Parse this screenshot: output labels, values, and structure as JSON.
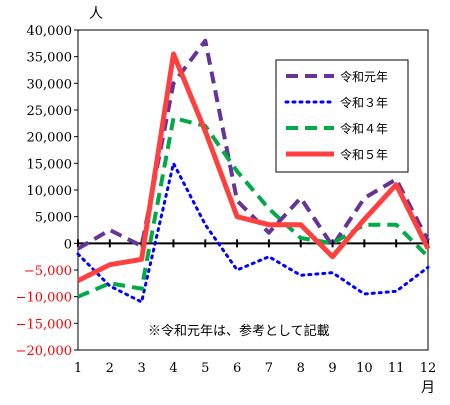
{
  "chart_data": {
    "type": "line",
    "x": [
      1,
      2,
      3,
      4,
      5,
      6,
      7,
      8,
      9,
      10,
      11,
      12
    ],
    "x_tick_labels": [
      "1",
      "2",
      "3",
      "4",
      "5",
      "6",
      "7",
      "8",
      "9",
      "10",
      "11",
      "12"
    ],
    "x_unit": "月",
    "y_unit": "人",
    "ylim": [
      -20000,
      40000
    ],
    "yticks": [
      40000,
      35000,
      30000,
      25000,
      20000,
      15000,
      10000,
      5000,
      0,
      -5000,
      -10000,
      -15000,
      -20000
    ],
    "ytick_labels": [
      "40,000",
      "35,000",
      "30,000",
      "25,000",
      "20,000",
      "15,000",
      "10,000",
      "5,000",
      "0",
      "−5,000",
      "−10,000",
      "−15,000",
      "−20,000"
    ],
    "negative_tick_color": "#ff0000",
    "note": "※令和元年は、参考として記載",
    "legend_position": "top-right",
    "series": [
      {
        "name": "令和元年",
        "color": "#663399",
        "style": "dashed",
        "values": [
          -1000,
          2500,
          -500,
          30000,
          38000,
          8000,
          2000,
          8500,
          -500,
          8500,
          12000,
          500
        ]
      },
      {
        "name": "令和３年",
        "color": "#0000ff",
        "style": "dotted",
        "values": [
          -2000,
          -8000,
          -11000,
          15000,
          3500,
          -5000,
          -2500,
          -6000,
          -5500,
          -9500,
          -9000,
          -4500
        ]
      },
      {
        "name": "令和４年",
        "color": "#00aa44",
        "style": "dashed",
        "values": [
          -10000,
          -7500,
          -8500,
          23500,
          22000,
          13500,
          6500,
          1000,
          0,
          3500,
          3500,
          -2500
        ]
      },
      {
        "name": "令和５年",
        "color": "#ff4040",
        "style": "solid",
        "values": [
          -7000,
          -4000,
          -3000,
          35500,
          21000,
          5000,
          3500,
          3500,
          -2500,
          4500,
          11000,
          -1000
        ]
      }
    ]
  }
}
